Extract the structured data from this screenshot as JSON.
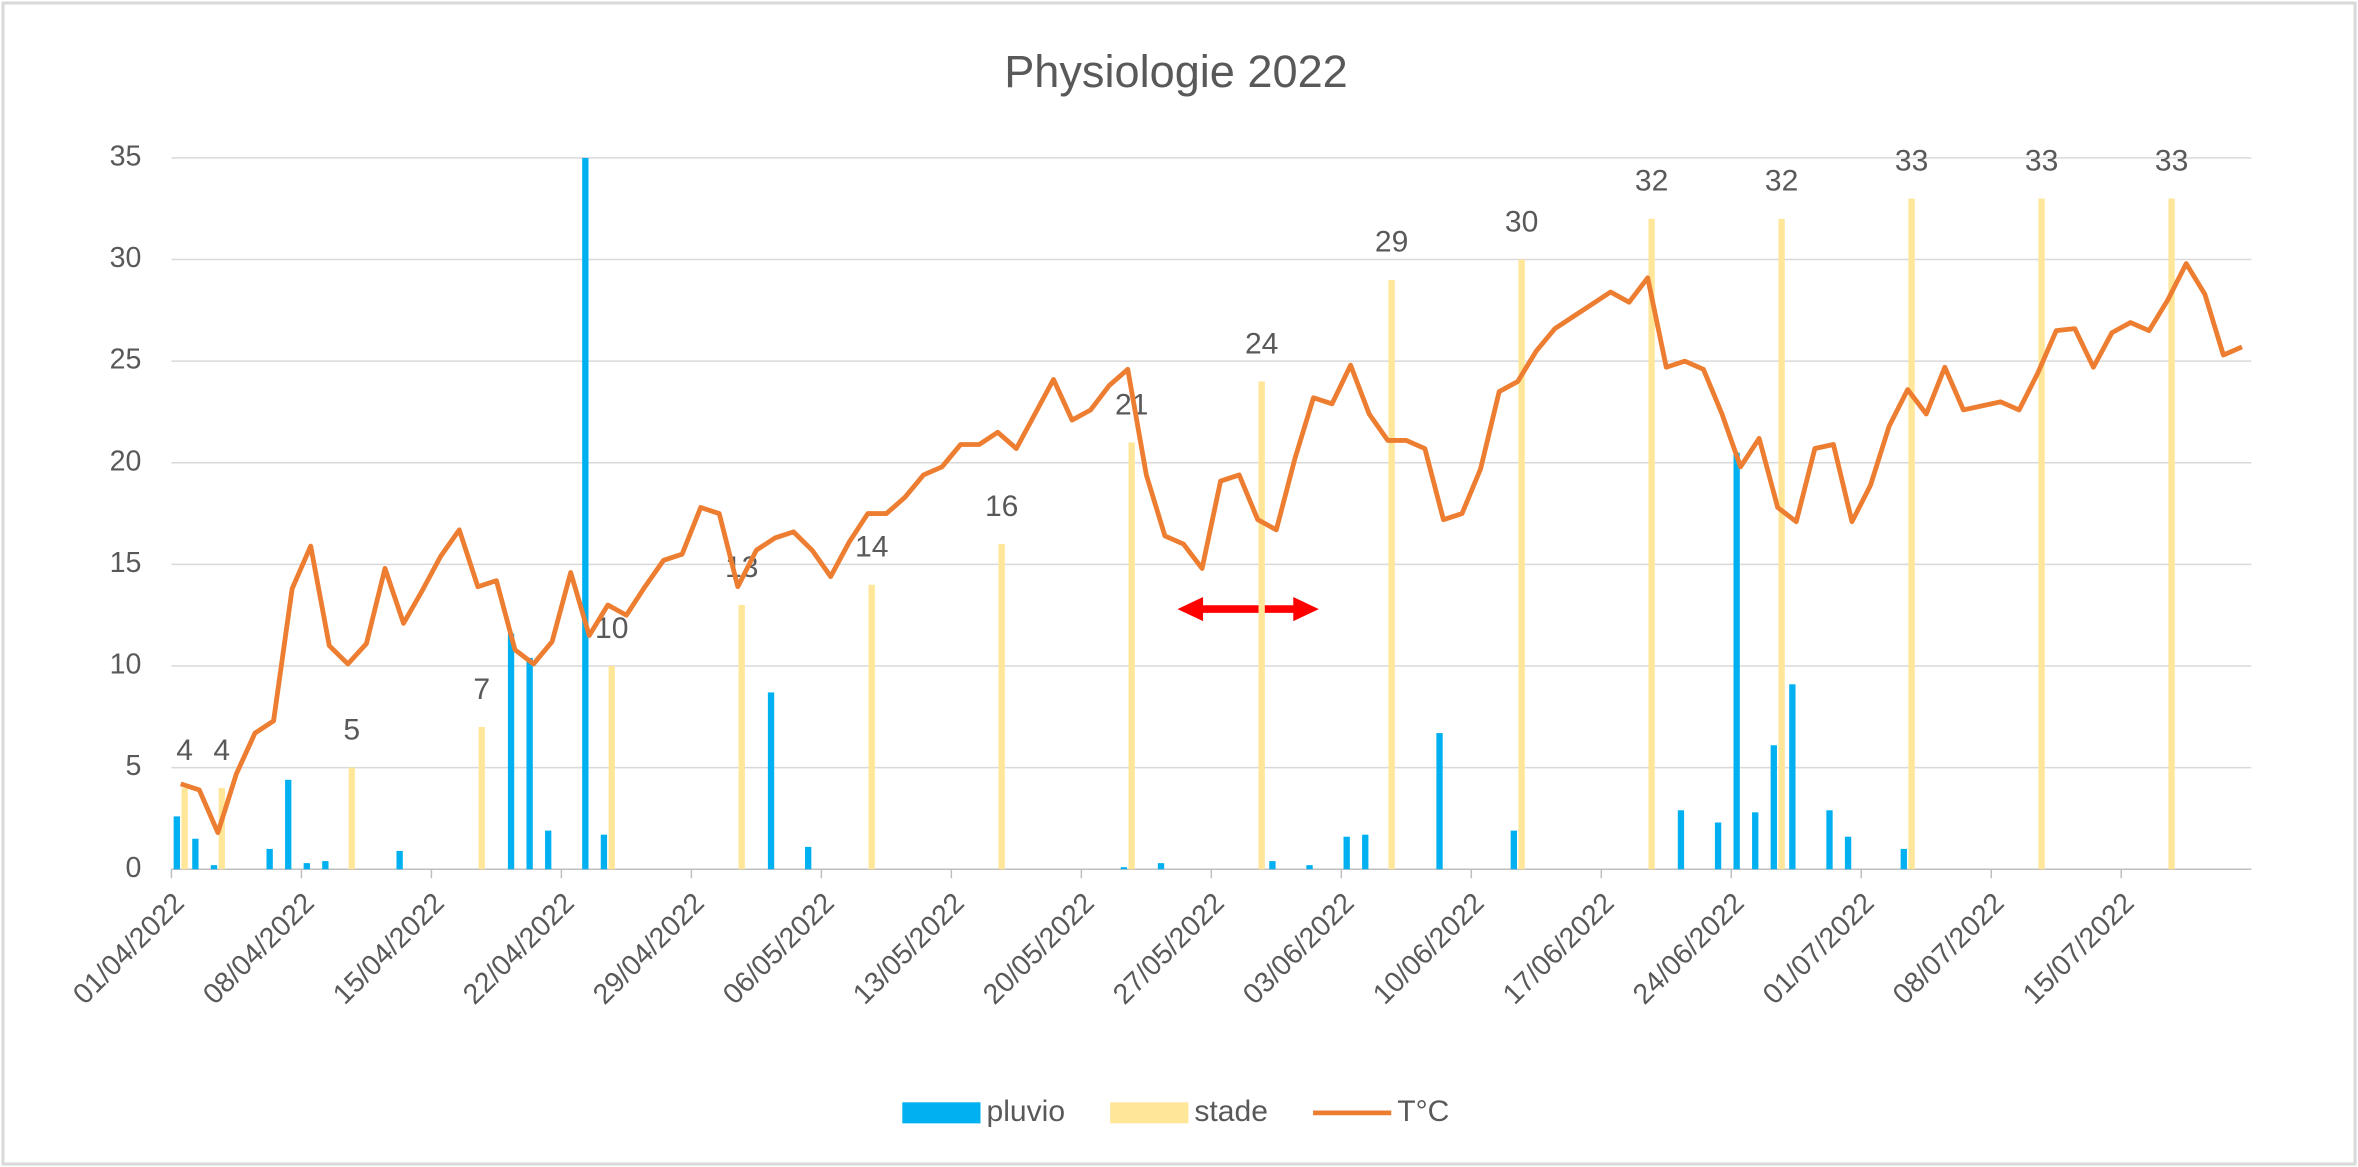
{
  "chart_data": {
    "type": "bar",
    "title": "Physiologie 2022",
    "categories": [
      "01/04/2022",
      null,
      null,
      null,
      null,
      null,
      null,
      "08/04/2022",
      null,
      null,
      null,
      null,
      null,
      null,
      "15/04/2022",
      null,
      null,
      null,
      null,
      null,
      null,
      "22/04/2022",
      null,
      null,
      null,
      null,
      null,
      null,
      "29/04/2022",
      null,
      null,
      null,
      null,
      null,
      null,
      "06/05/2022",
      null,
      null,
      null,
      null,
      null,
      null,
      "13/05/2022",
      null,
      null,
      null,
      null,
      null,
      null,
      "20/05/2022",
      null,
      null,
      null,
      null,
      null,
      null,
      "27/05/2022",
      null,
      null,
      null,
      null,
      null,
      null,
      "03/06/2022",
      null,
      null,
      null,
      null,
      null,
      null,
      "10/06/2022",
      null,
      null,
      null,
      null,
      null,
      null,
      "17/06/2022",
      null,
      null,
      null,
      null,
      null,
      null,
      "24/06/2022",
      null,
      null,
      null,
      null,
      null,
      null,
      "01/07/2022",
      null,
      null,
      null,
      null,
      null,
      null,
      "08/07/2022",
      null,
      null,
      null,
      null,
      null,
      null,
      "15/07/2022",
      null,
      null,
      null,
      null,
      null,
      null
    ],
    "series": [
      {
        "name": "pluvio",
        "type": "bar",
        "color": "#00b0f0",
        "values": [
          2.6,
          1.5,
          0.2,
          null,
          null,
          1.0,
          4.4,
          0.3,
          0.4,
          null,
          null,
          null,
          0.9,
          null,
          null,
          null,
          null,
          null,
          11.6,
          10.4,
          1.9,
          null,
          35,
          1.7,
          null,
          null,
          null,
          null,
          null,
          null,
          null,
          null,
          8.7,
          null,
          1.1,
          null,
          null,
          null,
          null,
          null,
          null,
          null,
          null,
          null,
          null,
          null,
          null,
          null,
          null,
          null,
          null,
          0.1,
          null,
          0.3,
          null,
          null,
          null,
          null,
          null,
          0.4,
          null,
          0.2,
          null,
          1.6,
          1.7,
          null,
          null,
          null,
          6.7,
          null,
          null,
          null,
          1.9,
          null,
          null,
          null,
          null,
          null,
          null,
          null,
          null,
          2.9,
          null,
          2.3,
          20.5,
          2.8,
          6.1,
          9.1,
          null,
          2.9,
          1.6,
          null,
          null,
          1.0,
          null,
          null,
          null,
          null,
          null,
          null,
          null,
          null,
          null,
          null,
          null,
          null,
          null,
          null,
          null,
          null,
          null,
          null
        ]
      },
      {
        "name": "stade",
        "type": "bar",
        "color": "#ffe699",
        "data_labels": true,
        "values": [
          4,
          null,
          4,
          null,
          null,
          null,
          null,
          null,
          null,
          5,
          null,
          null,
          null,
          null,
          null,
          null,
          7,
          null,
          null,
          null,
          null,
          null,
          null,
          10,
          null,
          null,
          null,
          null,
          null,
          null,
          13,
          null,
          null,
          null,
          null,
          null,
          null,
          14,
          null,
          null,
          null,
          null,
          null,
          null,
          16,
          null,
          null,
          null,
          null,
          null,
          null,
          21,
          null,
          null,
          null,
          null,
          null,
          null,
          24,
          null,
          null,
          null,
          null,
          null,
          null,
          29,
          null,
          null,
          null,
          null,
          null,
          null,
          30,
          null,
          null,
          null,
          null,
          null,
          null,
          32,
          null,
          null,
          null,
          null,
          null,
          null,
          32,
          null,
          null,
          null,
          null,
          null,
          null,
          33,
          null,
          null,
          null,
          null,
          null,
          null,
          33,
          null,
          null,
          null,
          null,
          null,
          null,
          33,
          null,
          null,
          null,
          null
        ]
      },
      {
        "name": "T°C",
        "type": "line",
        "color": "#ed7d31",
        "values": [
          4.2,
          3.9,
          1.8,
          4.7,
          6.7,
          7.3,
          13.8,
          15.9,
          11,
          10.1,
          11.1,
          14.8,
          12.1,
          13.7,
          15.4,
          16.7,
          13.9,
          14.2,
          10.8,
          10.1,
          11.2,
          14.6,
          11.5,
          13,
          12.5,
          13.9,
          15.2,
          15.5,
          17.8,
          17.5,
          13.9,
          15.7,
          16.3,
          16.6,
          15.7,
          14.4,
          16.1,
          17.5,
          17.5,
          18.3,
          19.4,
          19.8,
          20.9,
          20.9,
          21.5,
          20.7,
          22.4,
          24.1,
          22.1,
          22.6,
          23.8,
          24.6,
          19.4,
          16.4,
          16,
          14.8,
          19.1,
          19.4,
          17.2,
          16.7,
          20.2,
          23.2,
          22.9,
          24.8,
          22.4,
          21.1,
          21.1,
          20.7,
          17.2,
          17.5,
          19.7,
          23.5,
          24,
          25.5,
          26.6,
          27.2,
          27.8,
          28.4,
          27.9,
          29.1,
          24.7,
          25,
          24.6,
          22.4,
          19.8,
          21.2,
          17.8,
          17.1,
          20.7,
          20.9,
          17.1,
          18.9,
          21.8,
          23.6,
          22.4,
          24.7,
          22.6,
          22.8,
          23,
          22.6,
          24.4,
          26.5,
          26.6,
          24.7,
          26.4,
          26.9,
          26.5,
          28,
          29.8,
          28.3,
          25.3,
          25.7
        ]
      }
    ],
    "ylim": [
      0,
      35
    ],
    "yticks": [
      0,
      5,
      10,
      15,
      20,
      25,
      30,
      35
    ],
    "grid": true,
    "legend": "bottom"
  }
}
